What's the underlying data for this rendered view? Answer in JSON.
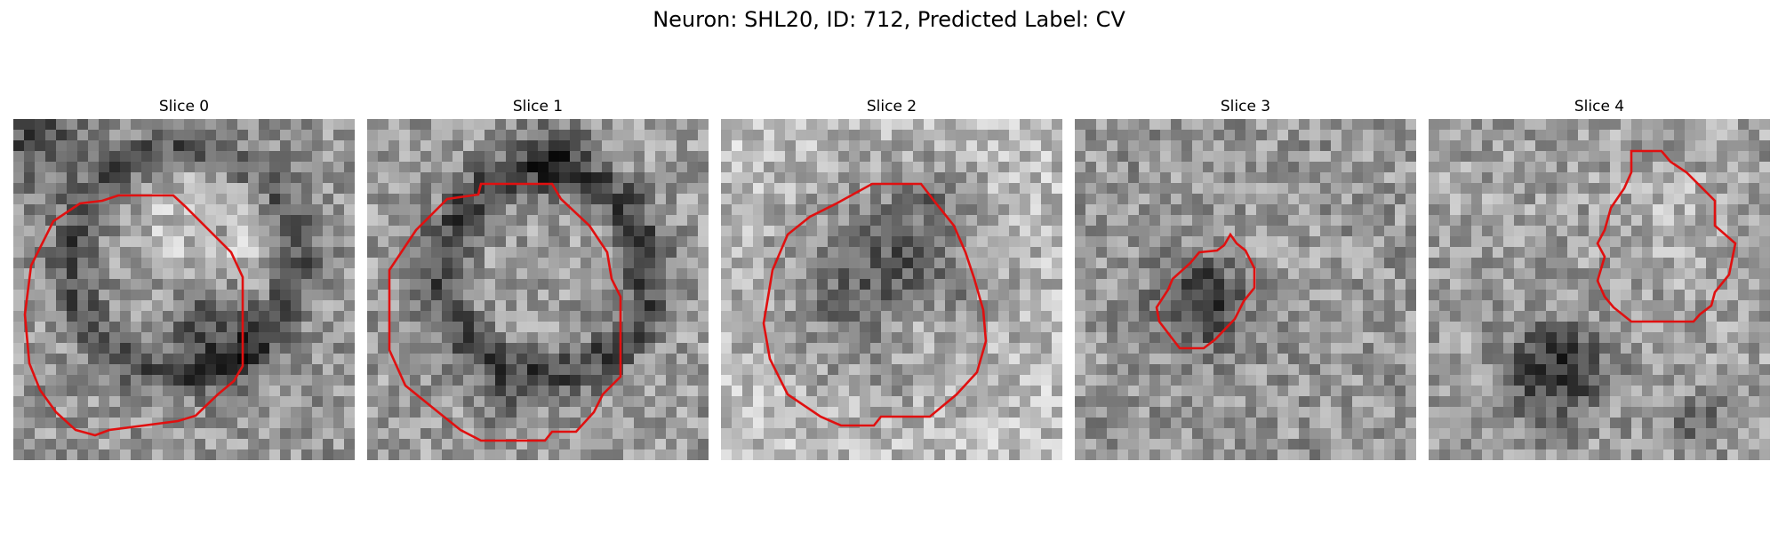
{
  "figure": {
    "title": "Neuron: SHL20, ID: 712, Predicted Label: CV"
  },
  "contour_color": "#e01010",
  "slices": [
    {
      "label": "Slice 0"
    },
    {
      "label": "Slice 1"
    },
    {
      "label": "Slice 2"
    },
    {
      "label": "Slice 3"
    },
    {
      "label": "Slice 4"
    }
  ]
}
